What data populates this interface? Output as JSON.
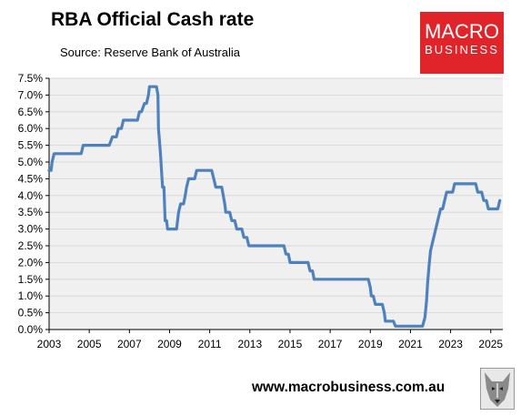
{
  "header": {
    "title": "RBA Official Cash rate",
    "subtitle": "Source: Reserve Bank of Australia"
  },
  "logo": {
    "line1": "MACRO",
    "line2": "BUSINESS",
    "color": "#e1242a"
  },
  "footer": {
    "url": "www.macrobusiness.com.au"
  },
  "chart_data": {
    "type": "line",
    "title": "RBA Official Cash rate",
    "xlabel": "",
    "ylabel": "",
    "xlim": [
      2003,
      2025.6
    ],
    "ylim": [
      0,
      7.5
    ],
    "x_ticks": [
      "2003",
      "2005",
      "2007",
      "2009",
      "2011",
      "2013",
      "2015",
      "2017",
      "2019",
      "2021",
      "2023",
      "2025"
    ],
    "y_ticks": [
      "0.0%",
      "0.5%",
      "1.0%",
      "1.5%",
      "2.0%",
      "2.5%",
      "3.0%",
      "3.5%",
      "4.0%",
      "4.5%",
      "5.0%",
      "5.5%",
      "6.0%",
      "6.5%",
      "7.0%",
      "7.5%"
    ],
    "grid": "horizontal",
    "plot_background": "#f0f0f0",
    "series": [
      {
        "color": "#4f81bd",
        "points": [
          [
            2003.0,
            4.75
          ],
          [
            2003.1,
            4.75
          ],
          [
            2003.15,
            5.0
          ],
          [
            2003.25,
            5.25
          ],
          [
            2004.6,
            5.25
          ],
          [
            2004.7,
            5.5
          ],
          [
            2006.0,
            5.5
          ],
          [
            2006.15,
            5.75
          ],
          [
            2006.35,
            5.75
          ],
          [
            2006.45,
            6.0
          ],
          [
            2006.6,
            6.0
          ],
          [
            2006.7,
            6.25
          ],
          [
            2007.4,
            6.25
          ],
          [
            2007.5,
            6.5
          ],
          [
            2007.6,
            6.5
          ],
          [
            2007.75,
            6.75
          ],
          [
            2007.85,
            6.75
          ],
          [
            2007.95,
            7.0
          ],
          [
            2008.0,
            7.25
          ],
          [
            2008.35,
            7.25
          ],
          [
            2008.42,
            7.0
          ],
          [
            2008.45,
            6.0
          ],
          [
            2008.55,
            5.25
          ],
          [
            2008.6,
            4.75
          ],
          [
            2008.65,
            4.25
          ],
          [
            2008.72,
            4.25
          ],
          [
            2008.78,
            3.25
          ],
          [
            2008.85,
            3.25
          ],
          [
            2008.9,
            3.0
          ],
          [
            2009.35,
            3.0
          ],
          [
            2009.45,
            3.5
          ],
          [
            2009.55,
            3.75
          ],
          [
            2009.7,
            3.75
          ],
          [
            2009.78,
            4.0
          ],
          [
            2009.85,
            4.25
          ],
          [
            2009.95,
            4.5
          ],
          [
            2010.25,
            4.5
          ],
          [
            2010.35,
            4.75
          ],
          [
            2011.1,
            4.75
          ],
          [
            2011.2,
            4.5
          ],
          [
            2011.3,
            4.25
          ],
          [
            2011.6,
            4.25
          ],
          [
            2011.75,
            3.75
          ],
          [
            2011.8,
            3.5
          ],
          [
            2012.0,
            3.5
          ],
          [
            2012.1,
            3.25
          ],
          [
            2012.25,
            3.25
          ],
          [
            2012.35,
            3.0
          ],
          [
            2012.6,
            3.0
          ],
          [
            2012.7,
            2.75
          ],
          [
            2012.85,
            2.75
          ],
          [
            2012.95,
            2.5
          ],
          [
            2014.7,
            2.5
          ],
          [
            2014.8,
            2.25
          ],
          [
            2014.92,
            2.25
          ],
          [
            2015.0,
            2.0
          ],
          [
            2015.9,
            2.0
          ],
          [
            2016.0,
            1.75
          ],
          [
            2016.12,
            1.75
          ],
          [
            2016.2,
            1.5
          ],
          [
            2018.9,
            1.5
          ],
          [
            2019.0,
            1.25
          ],
          [
            2019.05,
            1.0
          ],
          [
            2019.15,
            1.0
          ],
          [
            2019.25,
            0.75
          ],
          [
            2019.6,
            0.75
          ],
          [
            2019.7,
            0.5
          ],
          [
            2019.75,
            0.25
          ],
          [
            2020.15,
            0.25
          ],
          [
            2020.25,
            0.1
          ],
          [
            2021.6,
            0.1
          ],
          [
            2021.72,
            0.35
          ],
          [
            2021.8,
            0.85
          ],
          [
            2021.85,
            1.35
          ],
          [
            2021.92,
            1.85
          ],
          [
            2022.0,
            2.35
          ],
          [
            2022.1,
            2.6
          ],
          [
            2022.2,
            2.85
          ],
          [
            2022.3,
            3.1
          ],
          [
            2022.4,
            3.35
          ],
          [
            2022.5,
            3.6
          ],
          [
            2022.6,
            3.6
          ],
          [
            2022.7,
            3.85
          ],
          [
            2022.8,
            4.1
          ],
          [
            2023.1,
            4.1
          ],
          [
            2023.2,
            4.35
          ],
          [
            2024.25,
            4.35
          ],
          [
            2024.35,
            4.1
          ],
          [
            2024.55,
            4.1
          ],
          [
            2024.65,
            3.85
          ],
          [
            2024.78,
            3.85
          ],
          [
            2024.88,
            3.6
          ],
          [
            2025.35,
            3.6
          ],
          [
            2025.45,
            3.85
          ]
        ]
      }
    ]
  }
}
